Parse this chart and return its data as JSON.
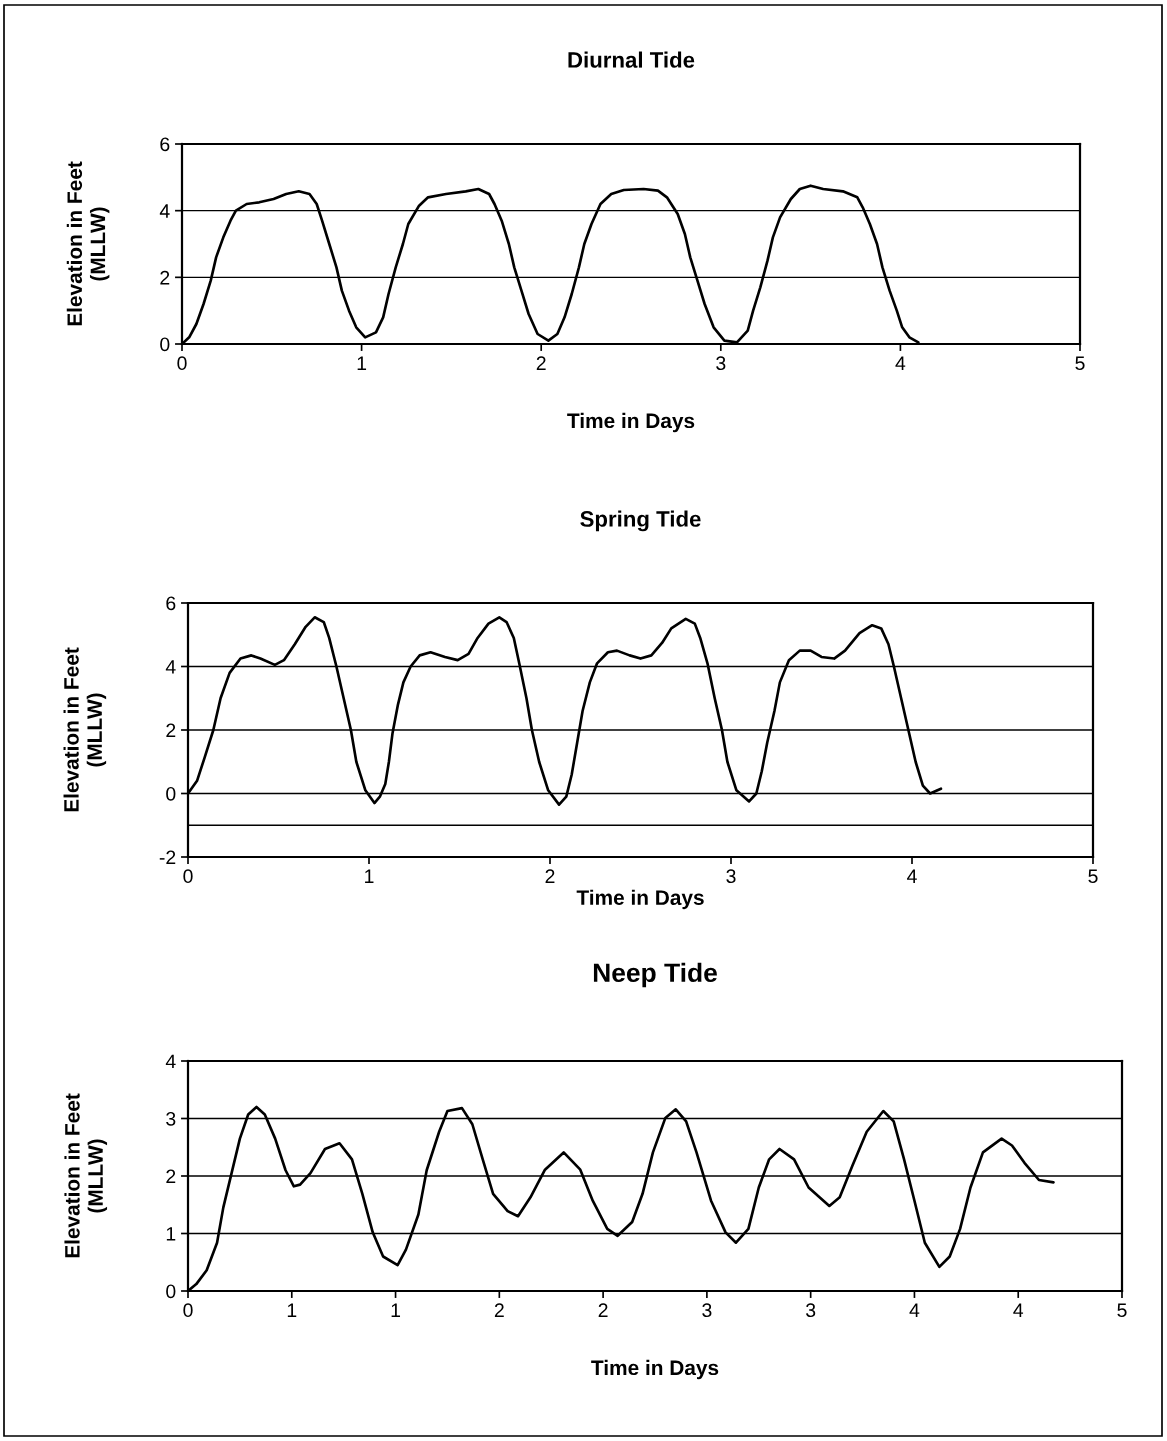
{
  "chart_data": [
    {
      "type": "line",
      "title": "Diurnal Tide",
      "xlabel": "Time in Days",
      "ylabel": "Elevation in Feet\n(MLLW)",
      "xlim": [
        0,
        5
      ],
      "xticks": [
        0,
        1,
        2,
        3,
        4,
        5
      ],
      "ylim": [
        0,
        6
      ],
      "yticks": [
        0,
        2,
        4,
        6
      ],
      "grid": "y",
      "line_style": "solid",
      "x": [
        0,
        0.04,
        0.08,
        0.12,
        0.16,
        0.19,
        0.23,
        0.27,
        0.3,
        0.36,
        0.43,
        0.51,
        0.58,
        0.65,
        0.71,
        0.75,
        0.78,
        0.82,
        0.86,
        0.89,
        0.93,
        0.97,
        1.02,
        1.08,
        1.12,
        1.15,
        1.19,
        1.23,
        1.26,
        1.32,
        1.37,
        1.47,
        1.58,
        1.65,
        1.71,
        1.74,
        1.78,
        1.82,
        1.85,
        1.89,
        1.93,
        1.98,
        2.04,
        2.09,
        2.13,
        2.17,
        2.21,
        2.24,
        2.28,
        2.33,
        2.39,
        2.46,
        2.57,
        2.65,
        2.7,
        2.76,
        2.8,
        2.83,
        2.87,
        2.91,
        2.96,
        3.02,
        3.09,
        3.15,
        3.18,
        3.22,
        3.26,
        3.29,
        3.33,
        3.39,
        3.44,
        3.5,
        3.57,
        3.68,
        3.76,
        3.79,
        3.83,
        3.87,
        3.9,
        3.94,
        3.98,
        4.01,
        4.05,
        4.1
      ],
      "series": [
        {
          "color": "#000000",
          "values": [
            0,
            0.2,
            0.6,
            1.2,
            1.9,
            2.6,
            3.2,
            3.7,
            4.0,
            4.2,
            4.25,
            4.35,
            4.5,
            4.58,
            4.5,
            4.2,
            3.7,
            3.0,
            2.3,
            1.6,
            1.0,
            0.5,
            0.2,
            0.35,
            0.8,
            1.5,
            2.3,
            3.0,
            3.6,
            4.15,
            4.4,
            4.5,
            4.58,
            4.65,
            4.5,
            4.2,
            3.7,
            3.0,
            2.3,
            1.6,
            0.9,
            0.3,
            0.1,
            0.3,
            0.8,
            1.5,
            2.3,
            3.0,
            3.6,
            4.2,
            4.5,
            4.62,
            4.65,
            4.6,
            4.4,
            3.9,
            3.3,
            2.6,
            1.9,
            1.2,
            0.5,
            0.1,
            0.05,
            0.4,
            1.0,
            1.7,
            2.5,
            3.2,
            3.8,
            4.35,
            4.65,
            4.75,
            4.65,
            4.58,
            4.4,
            4.1,
            3.6,
            3.0,
            2.3,
            1.6,
            1.0,
            0.5,
            0.2,
            0.05
          ]
        }
      ]
    },
    {
      "type": "line",
      "title": "Spring Tide",
      "xlabel": "Time in Days",
      "ylabel": "Elevation in Feet\n(MLLW)",
      "xlim": [
        0,
        5
      ],
      "xticks": [
        0,
        1,
        2,
        3,
        4,
        5
      ],
      "ylim": [
        -2,
        6
      ],
      "yticks": [
        -2,
        0,
        2,
        4,
        6
      ],
      "grid": "y",
      "line_style": "solid",
      "ref_lines": [
        {
          "axis": "y",
          "value": -1,
          "color": "#000000"
        }
      ],
      "x": [
        0,
        0.05,
        0.09,
        0.14,
        0.18,
        0.23,
        0.29,
        0.35,
        0.4,
        0.48,
        0.53,
        0.59,
        0.65,
        0.7,
        0.75,
        0.78,
        0.82,
        0.86,
        0.9,
        0.93,
        0.98,
        1.03,
        1.06,
        1.09,
        1.11,
        1.13,
        1.16,
        1.19,
        1.23,
        1.28,
        1.34,
        1.42,
        1.49,
        1.55,
        1.6,
        1.66,
        1.72,
        1.76,
        1.8,
        1.83,
        1.87,
        1.9,
        1.94,
        1.99,
        2.05,
        2.09,
        2.12,
        2.15,
        2.18,
        2.22,
        2.26,
        2.32,
        2.37,
        2.44,
        2.5,
        2.56,
        2.62,
        2.67,
        2.75,
        2.8,
        2.83,
        2.87,
        2.91,
        2.95,
        2.98,
        3.03,
        3.1,
        3.14,
        3.17,
        3.2,
        3.24,
        3.27,
        3.32,
        3.38,
        3.44,
        3.5,
        3.57,
        3.63,
        3.71,
        3.78,
        3.83,
        3.87,
        3.9,
        3.94,
        3.98,
        4.02,
        4.06,
        4.1,
        4.16
      ],
      "series": [
        {
          "color": "#000000",
          "values": [
            0,
            0.4,
            1.1,
            2.0,
            3.0,
            3.8,
            4.25,
            4.35,
            4.25,
            4.05,
            4.2,
            4.7,
            5.25,
            5.55,
            5.4,
            4.9,
            4.0,
            3.0,
            2.0,
            1.0,
            0.1,
            -0.3,
            -0.1,
            0.3,
            1.0,
            1.9,
            2.8,
            3.5,
            4.0,
            4.35,
            4.45,
            4.3,
            4.2,
            4.4,
            4.9,
            5.35,
            5.55,
            5.4,
            4.9,
            4.1,
            3.0,
            2.0,
            1.0,
            0.1,
            -0.35,
            -0.1,
            0.6,
            1.6,
            2.6,
            3.5,
            4.1,
            4.45,
            4.5,
            4.35,
            4.25,
            4.35,
            4.75,
            5.2,
            5.5,
            5.35,
            4.9,
            4.1,
            3.0,
            2.0,
            1.0,
            0.1,
            -0.25,
            0.0,
            0.7,
            1.6,
            2.6,
            3.5,
            4.2,
            4.5,
            4.5,
            4.3,
            4.25,
            4.5,
            5.05,
            5.3,
            5.2,
            4.7,
            4.0,
            3.0,
            2.0,
            1.0,
            0.25,
            0.0,
            0.15
          ]
        }
      ]
    },
    {
      "type": "line",
      "title": "Neep Tide",
      "xlabel": "Time in Days",
      "ylabel": "Elevation in Feet\n(MLLW)",
      "xlim": [
        0,
        4.5
      ],
      "xticks": [
        0,
        {
          "value": 0.5,
          "label": "1"
        },
        {
          "value": 1,
          "label": "1"
        },
        {
          "value": 1.5,
          "label": "2"
        },
        {
          "value": 2,
          "label": "2"
        },
        {
          "value": 2.5,
          "label": "3"
        },
        {
          "value": 3,
          "label": "3"
        },
        {
          "value": 3.5,
          "label": "4"
        },
        {
          "value": 4,
          "label": "4"
        },
        {
          "value": 4.5,
          "label": "5"
        }
      ],
      "ylim": [
        0,
        4
      ],
      "yticks": [
        0,
        1,
        2,
        3,
        4
      ],
      "grid": "y",
      "line_style": "solid",
      "x": [
        0,
        0.04,
        0.09,
        0.14,
        0.17,
        0.21,
        0.25,
        0.29,
        0.33,
        0.37,
        0.42,
        0.47,
        0.51,
        0.54,
        0.59,
        0.66,
        0.73,
        0.79,
        0.84,
        0.89,
        0.94,
        1.01,
        1.05,
        1.11,
        1.15,
        1.21,
        1.25,
        1.32,
        1.37,
        1.42,
        1.47,
        1.54,
        1.59,
        1.65,
        1.72,
        1.81,
        1.89,
        1.95,
        2.02,
        2.07,
        2.14,
        2.19,
        2.24,
        2.3,
        2.35,
        2.4,
        2.45,
        2.52,
        2.59,
        2.64,
        2.7,
        2.75,
        2.8,
        2.85,
        2.92,
        2.99,
        3.09,
        3.14,
        3.2,
        3.27,
        3.35,
        3.4,
        3.45,
        3.5,
        3.55,
        3.62,
        3.67,
        3.72,
        3.77,
        3.83,
        3.92,
        3.97,
        4.03,
        4.1,
        4.17
      ],
      "series": [
        {
          "color": "#000000",
          "values": [
            0,
            0.12,
            0.36,
            0.84,
            1.45,
            2.05,
            2.65,
            3.07,
            3.2,
            3.07,
            2.65,
            2.1,
            1.82,
            1.85,
            2.05,
            2.47,
            2.57,
            2.29,
            1.69,
            1.02,
            0.6,
            0.45,
            0.72,
            1.33,
            2.1,
            2.77,
            3.13,
            3.18,
            2.9,
            2.29,
            1.69,
            1.39,
            1.3,
            1.63,
            2.11,
            2.41,
            2.11,
            1.57,
            1.08,
            0.96,
            1.2,
            1.69,
            2.41,
            3.01,
            3.16,
            2.95,
            2.41,
            1.57,
            1.02,
            0.84,
            1.08,
            1.8,
            2.29,
            2.47,
            2.29,
            1.8,
            1.48,
            1.63,
            2.17,
            2.77,
            3.13,
            2.95,
            2.29,
            1.57,
            0.84,
            0.42,
            0.6,
            1.08,
            1.8,
            2.41,
            2.65,
            2.53,
            2.23,
            1.93,
            1.89
          ]
        }
      ]
    }
  ]
}
